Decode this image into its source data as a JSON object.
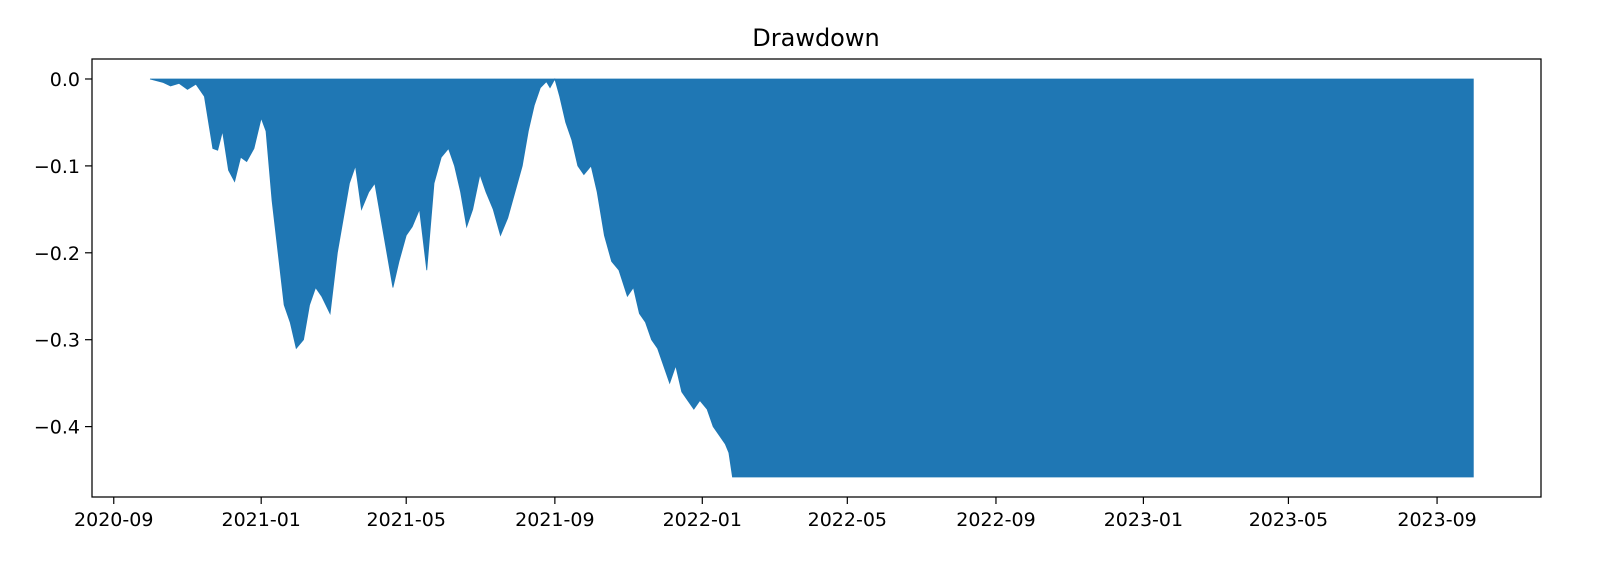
{
  "chart_data": {
    "type": "area",
    "title": "Drawdown",
    "xlabel": "",
    "ylabel": "",
    "x_type": "date",
    "xlim": [
      "2020-08-14",
      "2023-11-26"
    ],
    "ylim": [
      -0.481,
      0.023
    ],
    "xticks": [
      "2020-09-01",
      "2021-01-01",
      "2021-05-01",
      "2021-09-01",
      "2022-01-01",
      "2022-05-01",
      "2022-09-01",
      "2023-01-01",
      "2023-05-01",
      "2023-09-01"
    ],
    "xtick_labels": [
      "2020-09",
      "2021-01",
      "2021-05",
      "2021-09",
      "2022-01",
      "2022-05",
      "2022-09",
      "2023-01",
      "2023-05",
      "2023-09"
    ],
    "yticks": [
      0.0,
      -0.1,
      -0.2,
      -0.3,
      -0.4
    ],
    "ytick_labels": [
      "0.0",
      "−0.1",
      "−0.2",
      "−0.3",
      "−0.4"
    ],
    "grid": false,
    "legend": "none",
    "color": "#1f77b4",
    "series": [
      {
        "x": [
          "2020-10-01",
          "2020-10-12",
          "2020-10-18",
          "2020-10-25",
          "2020-11-01",
          "2020-11-08",
          "2020-11-15",
          "2020-11-22",
          "2020-11-26",
          "2020-11-30",
          "2020-12-05",
          "2020-12-10",
          "2020-12-15",
          "2020-12-20",
          "2020-12-26",
          "2021-01-01",
          "2021-01-05",
          "2021-01-10",
          "2021-01-15",
          "2021-01-20",
          "2021-01-25",
          "2021-01-30",
          "2021-02-05",
          "2021-02-10",
          "2021-02-15",
          "2021-02-20",
          "2021-02-27",
          "2021-03-05",
          "2021-03-10",
          "2021-03-15",
          "2021-03-20",
          "2021-03-25",
          "2021-03-31",
          "2021-04-05",
          "2021-04-10",
          "2021-04-15",
          "2021-04-20",
          "2021-04-25",
          "2021-05-01",
          "2021-05-06",
          "2021-05-12",
          "2021-05-18",
          "2021-05-24",
          "2021-05-30",
          "2021-06-05",
          "2021-06-10",
          "2021-06-15",
          "2021-06-20",
          "2021-06-25",
          "2021-07-01",
          "2021-07-06",
          "2021-07-12",
          "2021-07-18",
          "2021-07-24",
          "2021-07-30",
          "2021-08-05",
          "2021-08-10",
          "2021-08-15",
          "2021-08-20",
          "2021-08-25",
          "2021-08-28",
          "2021-09-01",
          "2021-09-05",
          "2021-09-10",
          "2021-09-15",
          "2021-09-20",
          "2021-09-25",
          "2021-10-01",
          "2021-10-06",
          "2021-10-12",
          "2021-10-18",
          "2021-10-24",
          "2021-10-31",
          "2021-11-05",
          "2021-11-10",
          "2021-11-15",
          "2021-11-20",
          "2021-11-25",
          "2021-11-30",
          "2021-12-05",
          "2021-12-10",
          "2021-12-15",
          "2021-12-20",
          "2021-12-25",
          "2021-12-30",
          "2022-01-05",
          "2022-01-10",
          "2022-01-15",
          "2022-01-20",
          "2022-01-23",
          "2022-01-26",
          "2022-02-01",
          "2022-05-01",
          "2022-09-01",
          "2023-01-01",
          "2023-05-01",
          "2023-10-01"
        ],
        "y": [
          0.0,
          -0.004,
          -0.008,
          -0.005,
          -0.012,
          -0.006,
          -0.02,
          -0.08,
          -0.082,
          -0.06,
          -0.105,
          -0.118,
          -0.09,
          -0.095,
          -0.08,
          -0.045,
          -0.06,
          -0.14,
          -0.2,
          -0.26,
          -0.28,
          -0.31,
          -0.3,
          -0.26,
          -0.24,
          -0.25,
          -0.27,
          -0.2,
          -0.16,
          -0.12,
          -0.1,
          -0.15,
          -0.13,
          -0.12,
          -0.16,
          -0.2,
          -0.24,
          -0.21,
          -0.18,
          -0.17,
          -0.15,
          -0.22,
          -0.12,
          -0.09,
          -0.08,
          -0.1,
          -0.13,
          -0.17,
          -0.15,
          -0.11,
          -0.13,
          -0.15,
          -0.18,
          -0.16,
          -0.13,
          -0.1,
          -0.06,
          -0.03,
          -0.01,
          -0.003,
          -0.01,
          0.0,
          -0.02,
          -0.05,
          -0.07,
          -0.1,
          -0.11,
          -0.1,
          -0.13,
          -0.18,
          -0.21,
          -0.22,
          -0.25,
          -0.24,
          -0.27,
          -0.28,
          -0.3,
          -0.31,
          -0.33,
          -0.35,
          -0.33,
          -0.36,
          -0.37,
          -0.38,
          -0.37,
          -0.38,
          -0.4,
          -0.41,
          -0.42,
          -0.43,
          -0.458,
          -0.458,
          -0.458,
          -0.458,
          -0.458,
          -0.458,
          -0.458
        ]
      }
    ]
  }
}
